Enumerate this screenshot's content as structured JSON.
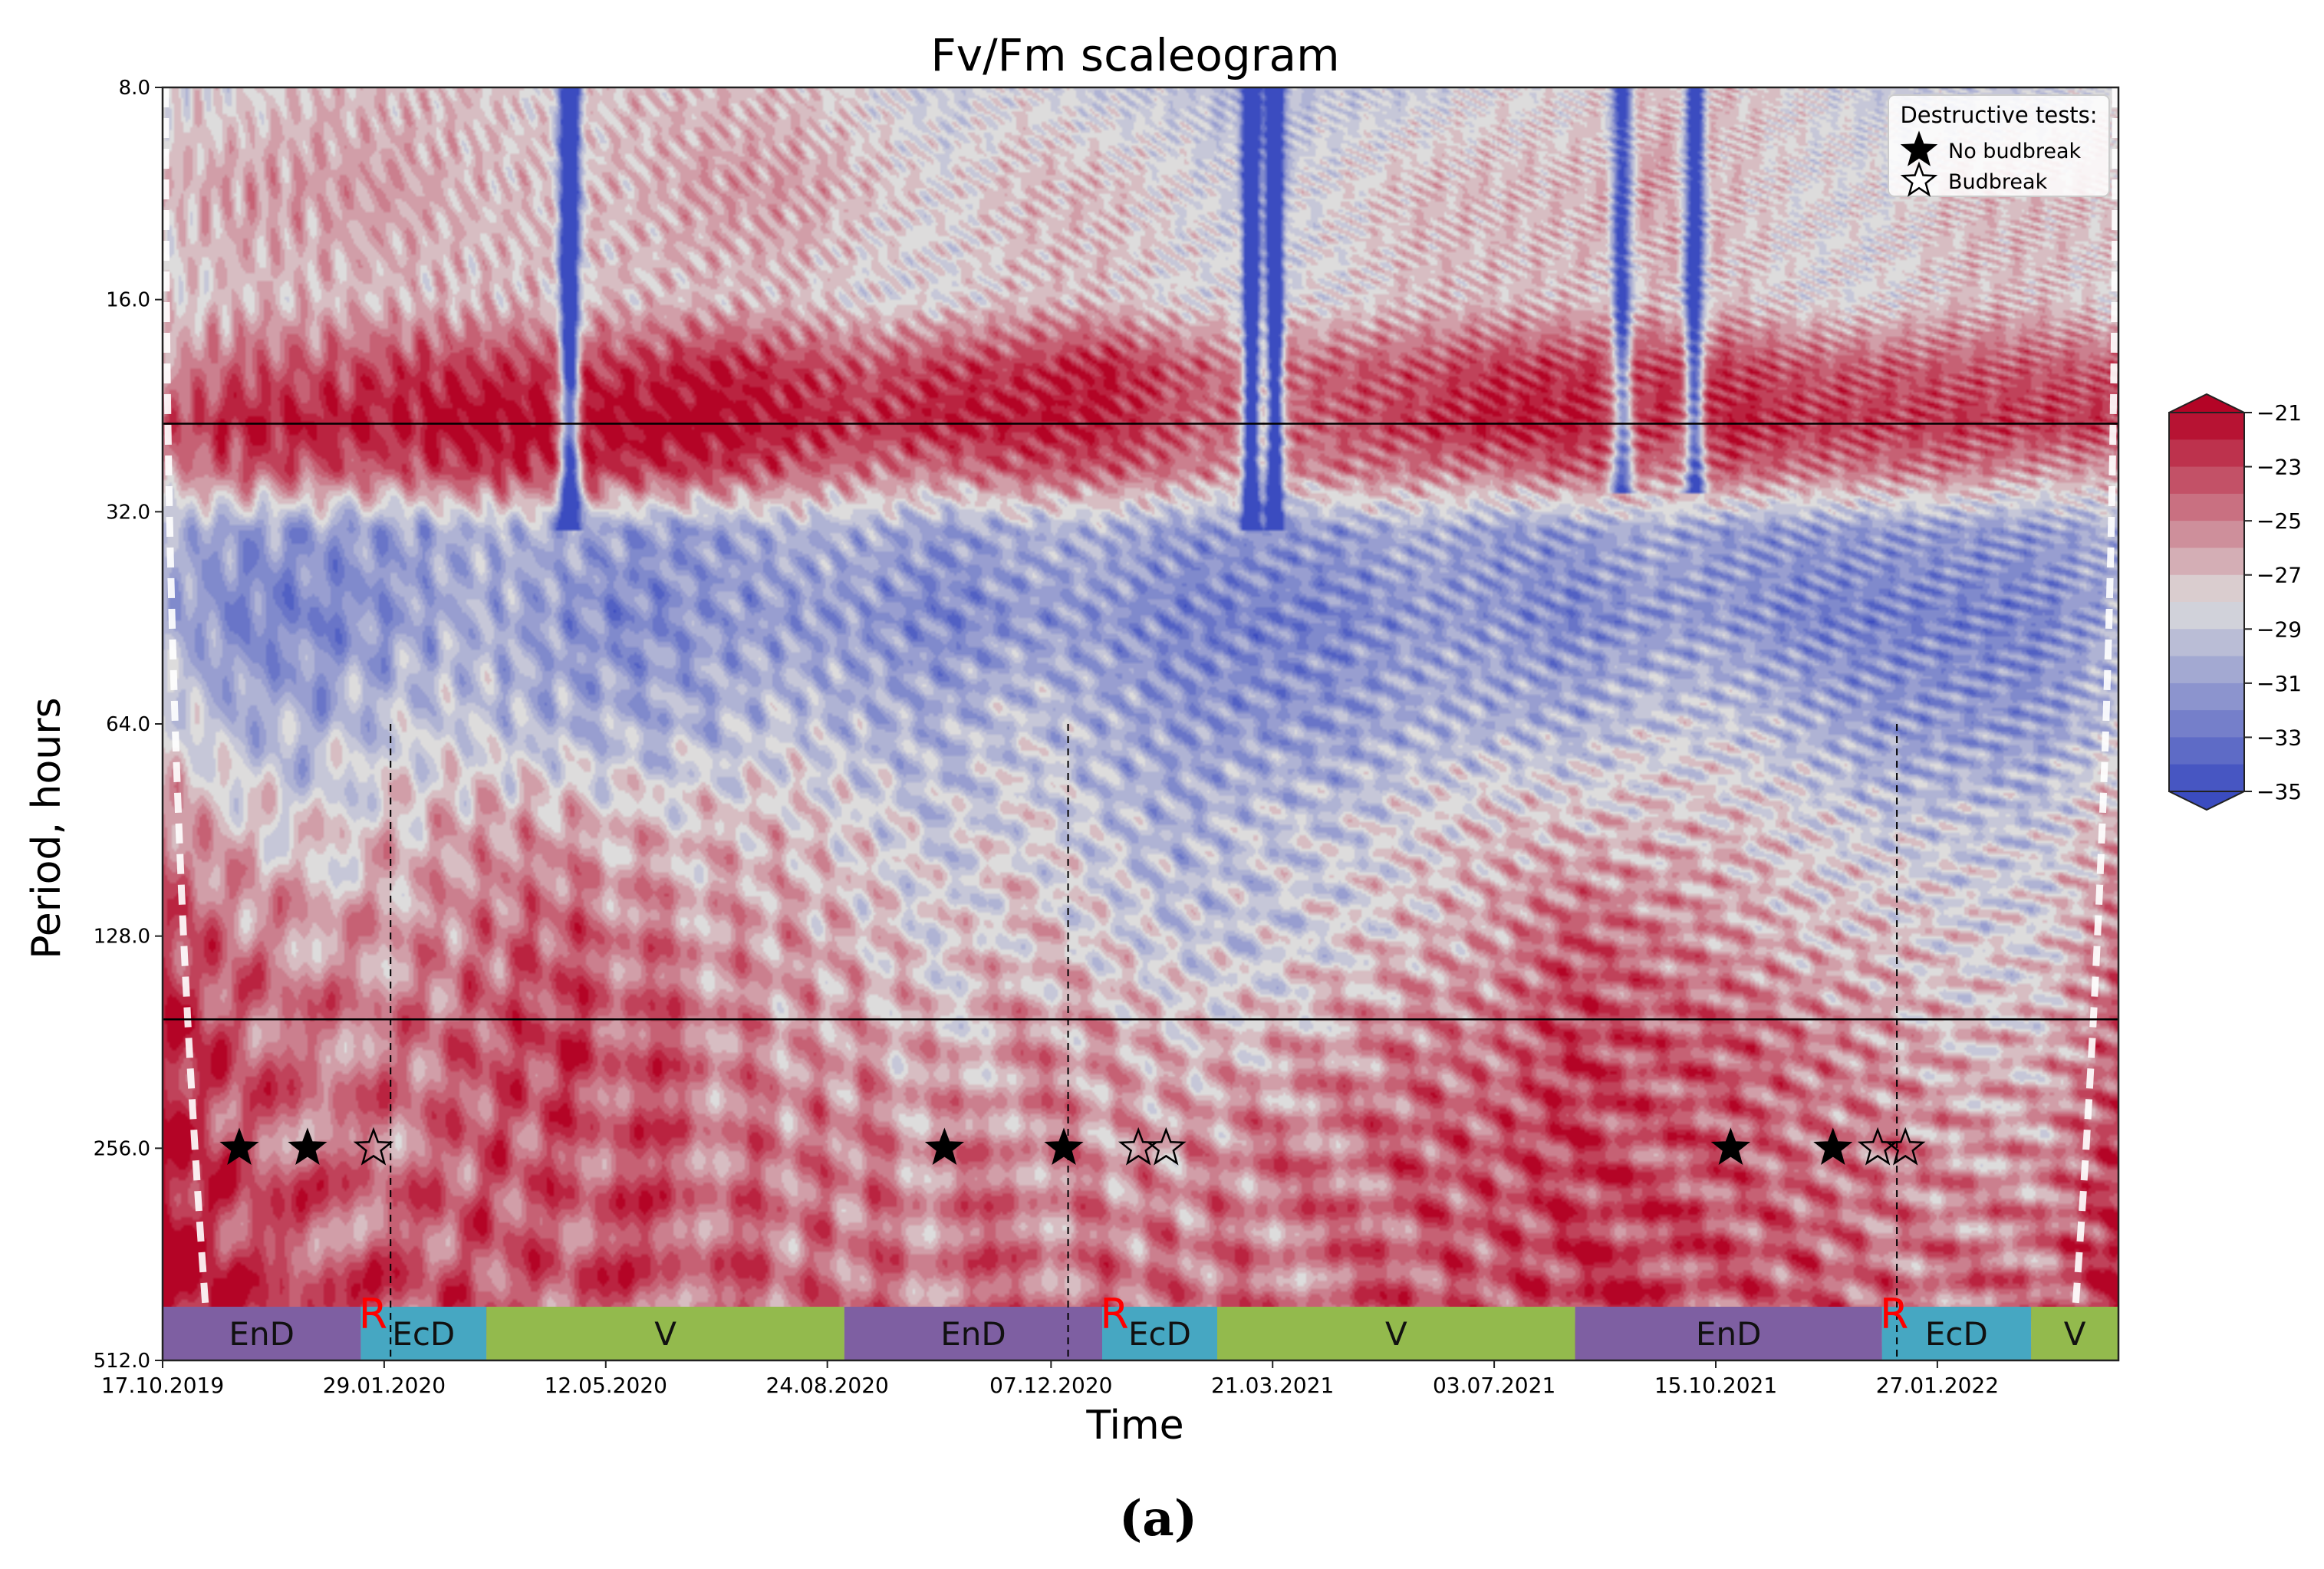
{
  "figure_label": "(a)",
  "colors": {
    "cold": "#3b4cc0",
    "neutral": "#dddcdc",
    "warm": "#b40426",
    "line": "#000000",
    "EnD": "#7e5fa2",
    "EcD": "#46a7c2",
    "V": "#93ba4d",
    "R": "#ff0000"
  },
  "chart_data": {
    "type": "heatmap",
    "title": "Fv/Fm scaleogram",
    "xlabel": "Time",
    "ylabel": "Period, hours",
    "xlim": [
      "17.10.2019",
      "22.04.2022"
    ],
    "x_ticks": [
      "17.10.2019",
      "29.01.2020",
      "12.05.2020",
      "24.08.2020",
      "07.12.2020",
      "21.03.2021",
      "03.07.2021",
      "15.10.2021",
      "27.01.2022"
    ],
    "y_scale": "log2",
    "ylim": [
      8.0,
      512.0
    ],
    "y_ticks": [
      "8.0",
      "16.0",
      "32.0",
      "64.0",
      "128.0",
      "256.0",
      "512.0"
    ],
    "horizontal_lines_period_hours": [
      24,
      168
    ],
    "vertical_dashed_lines": [
      "01.02.2020",
      "15.12.2020",
      "08.01.2022"
    ],
    "colorbar": {
      "min": -35,
      "max": -21,
      "ticks": [
        "-21",
        "-23",
        "-25",
        "-27",
        "-29",
        "-31",
        "-33",
        "-35"
      ],
      "colormap": "coolwarm",
      "extend": "both"
    },
    "rows": [
      {
        "period": 8,
        "values": [
          -28,
          -28,
          -27,
          -27,
          -27,
          -28,
          -27,
          -27,
          -27,
          -28,
          -29,
          -28,
          -29,
          -29,
          -30,
          -29,
          -29,
          -28,
          -28,
          -27,
          -27,
          -28,
          -29,
          -29,
          -29,
          -28
        ]
      },
      {
        "period": 11,
        "values": [
          -27,
          -26,
          -26,
          -26,
          -27,
          -27,
          -27,
          -26,
          -26,
          -27,
          -28,
          -27,
          -27,
          -28,
          -29,
          -28,
          -27,
          -27,
          -27,
          -26,
          -27,
          -28,
          -28,
          -27,
          -27,
          -27
        ]
      },
      {
        "period": 16,
        "values": [
          -28,
          -27,
          -27,
          -27,
          -27,
          -27,
          -27,
          -27,
          -27,
          -28,
          -28,
          -27,
          -27,
          -28,
          -28,
          -28,
          -27,
          -27,
          -27,
          -27,
          -27,
          -28,
          -28,
          -27,
          -27,
          -28
        ]
      },
      {
        "period": 20,
        "values": [
          -26,
          -24,
          -24,
          -23,
          -23,
          -23,
          -23,
          -22,
          -23,
          -24,
          -23,
          -23,
          -22,
          -24,
          -25,
          -24,
          -24,
          -23,
          -23,
          -23,
          -23,
          -24,
          -24,
          -24,
          -24,
          -24
        ]
      },
      {
        "period": 24,
        "values": [
          -24,
          -22,
          -22,
          -22,
          -21,
          -21,
          -21,
          -21,
          -22,
          -23,
          -22,
          -22,
          -22,
          -24,
          -25,
          -24,
          -23,
          -22,
          -22,
          -23,
          -22,
          -23,
          -23,
          -23,
          -23,
          -23
        ]
      },
      {
        "period": 28,
        "values": [
          -26,
          -24,
          -24,
          -24,
          -23,
          -23,
          -23,
          -23,
          -24,
          -25,
          -25,
          -24,
          -24,
          -25,
          -26,
          -25,
          -25,
          -25,
          -24,
          -25,
          -24,
          -25,
          -25,
          -25,
          -26,
          -26
        ]
      },
      {
        "period": 34,
        "values": [
          -30,
          -31,
          -31,
          -31,
          -30,
          -30,
          -31,
          -31,
          -30,
          -30,
          -31,
          -30,
          -30,
          -31,
          -31,
          -31,
          -30,
          -31,
          -31,
          -30,
          -31,
          -31,
          -31,
          -31,
          -31,
          -30
        ]
      },
      {
        "period": 45,
        "values": [
          -30,
          -32,
          -32,
          -31,
          -30,
          -31,
          -32,
          -31,
          -31,
          -31,
          -32,
          -31,
          -31,
          -32,
          -32,
          -32,
          -31,
          -31,
          -32,
          -31,
          -31,
          -32,
          -32,
          -32,
          -32,
          -30
        ]
      },
      {
        "period": 64,
        "values": [
          -28,
          -30,
          -30,
          -29,
          -29,
          -30,
          -30,
          -30,
          -29,
          -30,
          -30,
          -29,
          -30,
          -31,
          -31,
          -31,
          -30,
          -30,
          -30,
          -29,
          -29,
          -30,
          -31,
          -31,
          -31,
          -29
        ]
      },
      {
        "period": 90,
        "values": [
          -25,
          -27,
          -28,
          -27,
          -26,
          -26,
          -27,
          -27,
          -27,
          -28,
          -29,
          -28,
          -29,
          -30,
          -29,
          -29,
          -28,
          -27,
          -27,
          -27,
          -27,
          -28,
          -29,
          -29,
          -29,
          -26
        ]
      },
      {
        "period": 128,
        "values": [
          -23,
          -25,
          -26,
          -26,
          -25,
          -24,
          -25,
          -26,
          -26,
          -27,
          -28,
          -27,
          -28,
          -29,
          -29,
          -28,
          -27,
          -26,
          -24,
          -25,
          -26,
          -27,
          -27,
          -28,
          -28,
          -25
        ]
      },
      {
        "period": 180,
        "values": [
          -22,
          -24,
          -25,
          -25,
          -24,
          -23,
          -24,
          -25,
          -26,
          -26,
          -27,
          -26,
          -26,
          -27,
          -27,
          -26,
          -25,
          -25,
          -23,
          -24,
          -24,
          -25,
          -26,
          -27,
          -27,
          -24
        ]
      },
      {
        "period": 256,
        "values": [
          -22,
          -24,
          -25,
          -25,
          -24,
          -24,
          -24,
          -25,
          -25,
          -25,
          -26,
          -25,
          -26,
          -26,
          -25,
          -25,
          -24,
          -24,
          -23,
          -24,
          -24,
          -25,
          -25,
          -26,
          -26,
          -23
        ]
      },
      {
        "period": 362,
        "values": [
          -21,
          -23,
          -24,
          -24,
          -24,
          -24,
          -24,
          -24,
          -25,
          -25,
          -25,
          -25,
          -25,
          -25,
          -25,
          -25,
          -24,
          -24,
          -23,
          -23,
          -24,
          -24,
          -25,
          -25,
          -25,
          -22
        ]
      },
      {
        "period": 512,
        "values": [
          -21,
          -23,
          -24,
          -24,
          -24,
          -24,
          -24,
          -24,
          -24,
          -24,
          -25,
          -25,
          -24,
          -24,
          -25,
          -24,
          -24,
          -24,
          -23,
          -23,
          -24,
          -24,
          -24,
          -24,
          -25,
          -21
        ]
      }
    ],
    "dips": [
      {
        "date": "25.04.2020",
        "depth": 1.0,
        "width": 0.005,
        "from": 8,
        "to": 34
      },
      {
        "date": "11.03.2021",
        "depth": 1.0,
        "width": 0.004,
        "from": 8,
        "to": 34
      },
      {
        "date": "22.03.2021",
        "depth": 1.0,
        "width": 0.004,
        "from": 8,
        "to": 34
      },
      {
        "date": "01.09.2021",
        "depth": 0.7,
        "width": 0.005,
        "from": 8,
        "to": 30
      },
      {
        "date": "05.10.2021",
        "depth": 0.8,
        "width": 0.005,
        "from": 8,
        "to": 30
      }
    ],
    "phases": [
      {
        "label": "EnD",
        "start": "17.10.2019",
        "end": "18.01.2020",
        "color_key": "EnD"
      },
      {
        "label": "EcD",
        "start": "18.01.2020",
        "end": "17.03.2020",
        "color_key": "EcD"
      },
      {
        "label": "V",
        "start": "17.03.2020",
        "end": "01.09.2020",
        "color_key": "V"
      },
      {
        "label": "EnD",
        "start": "01.09.2020",
        "end": "31.12.2020",
        "color_key": "EnD"
      },
      {
        "label": "EcD",
        "start": "31.12.2020",
        "end": "23.02.2021",
        "color_key": "EcD"
      },
      {
        "label": "V",
        "start": "23.02.2021",
        "end": "10.08.2021",
        "color_key": "V"
      },
      {
        "label": "EnD",
        "start": "10.08.2021",
        "end": "01.01.2022",
        "color_key": "EnD"
      },
      {
        "label": "EcD",
        "start": "01.01.2022",
        "end": "12.03.2022",
        "color_key": "EcD"
      },
      {
        "label": "V",
        "start": "12.03.2022",
        "end": "22.04.2022",
        "color_key": "V"
      }
    ],
    "r_markers": [
      {
        "label": "R",
        "date": "18.01.2020"
      },
      {
        "label": "R",
        "date": "31.12.2020"
      },
      {
        "label": "R",
        "date": "01.01.2022"
      }
    ],
    "destructive_tests": {
      "period_hours": 256,
      "no_budbreak": [
        "22.11.2019",
        "24.12.2019",
        "18.10.2020",
        "13.12.2020",
        "22.10.2021",
        "09.12.2021"
      ],
      "budbreak": [
        "24.01.2020",
        "17.01.2021",
        "30.01.2021",
        "30.12.2021",
        "12.01.2022"
      ]
    },
    "legend": {
      "title": "Destructive tests:",
      "position": "top-right",
      "entries": [
        {
          "label": "No budbreak",
          "marker": "filled-star"
        },
        {
          "label": "Budbreak",
          "marker": "open-star"
        }
      ]
    }
  }
}
